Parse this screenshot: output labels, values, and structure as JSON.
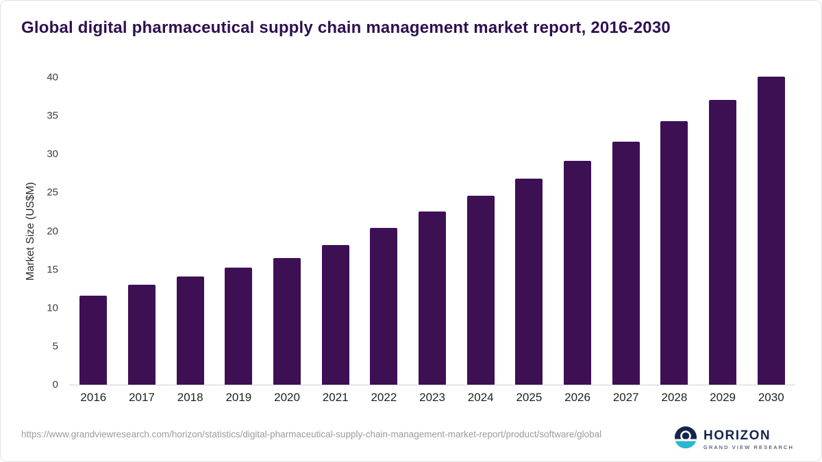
{
  "title": "Global digital pharmaceutical supply chain management market report, 2016-2030",
  "colors": {
    "bar": "#3d1054",
    "title": "#2e0f50",
    "brand_navy": "#16254c",
    "brand_teal": "#27b9d1",
    "source_text": "#9b9b9b"
  },
  "chart_data": {
    "type": "bar",
    "title": "Global digital pharmaceutical supply chain management market report, 2016-2030",
    "categories": [
      "2016",
      "2017",
      "2018",
      "2019",
      "2020",
      "2021",
      "2022",
      "2023",
      "2024",
      "2025",
      "2026",
      "2027",
      "2028",
      "2029",
      "2030"
    ],
    "values": [
      11.6,
      13.0,
      14.1,
      15.2,
      16.5,
      18.2,
      20.4,
      22.5,
      24.6,
      26.8,
      29.1,
      31.6,
      34.3,
      37.1,
      40.1
    ],
    "xlabel": "",
    "ylabel": "Market Size (US$M)",
    "ylim": [
      0,
      40
    ],
    "yticks": [
      0,
      5,
      10,
      15,
      20,
      25,
      30,
      35,
      40
    ],
    "grid": false,
    "legend": false,
    "bar_color": "#3d1054"
  },
  "footer": {
    "source_url": "https://www.grandviewresearch.com/horizon/statistics/digital-pharmaceutical-supply-chain-management-market-report/product/software/global",
    "brand_name": "HORIZON",
    "brand_sub": "GRAND VIEW RESEARCH",
    "brand_logo": "horizon-circle-logo"
  }
}
